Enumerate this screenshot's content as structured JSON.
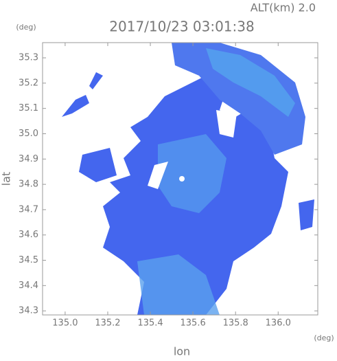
{
  "chart_data": {
    "type": "radar-map",
    "title": "2017/10/23 03:01:38",
    "altitude_label": "ALT(km) 2.0",
    "x_label": "lon",
    "y_label": "lat",
    "x_unit": "(deg)",
    "y_unit": "(deg)",
    "xlim": [
      134.894,
      136.186
    ],
    "ylim": [
      34.284,
      35.36
    ],
    "xticks": [
      {
        "value": 135,
        "label": "135.0"
      },
      135.2,
      135.4,
      135.6,
      135.8,
      {
        "value": 136,
        "label": "136.0"
      }
    ],
    "yticks": [
      34.3,
      34.4,
      34.5,
      34.6,
      34.7,
      34.8,
      34.9,
      {
        "value": 35,
        "label": "35.0"
      },
      35.1,
      35.2,
      35.3
    ]
  }
}
